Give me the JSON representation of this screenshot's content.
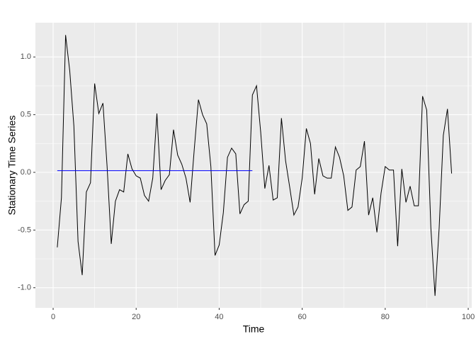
{
  "chart_data": {
    "type": "line",
    "xlabel": "Time",
    "ylabel": "Stationary Time Series",
    "xlim": [
      -4.27,
      100.85
    ],
    "ylim": [
      -1.174,
      1.297
    ],
    "xticks": [
      0,
      20,
      40,
      60,
      80,
      100
    ],
    "yticks": [
      {
        "value": -1,
        "label": "-1.0"
      },
      {
        "value": -0.5,
        "label": "-0.5"
      },
      {
        "value": 0,
        "label": "0.0"
      },
      {
        "value": 0.5,
        "label": "0.5"
      },
      {
        "value": 1,
        "label": "1.0"
      }
    ],
    "grid": true,
    "series": [
      {
        "color": "#000000",
        "x": [
          1,
          2,
          3,
          4,
          5,
          6,
          7,
          8,
          9,
          10,
          11,
          12,
          13,
          14,
          15,
          16,
          17,
          18,
          19,
          20,
          21,
          22,
          23,
          24,
          25,
          26,
          27,
          28,
          29,
          30,
          31,
          32,
          33,
          34,
          35,
          36,
          37,
          38,
          39,
          40,
          41,
          42,
          43,
          44,
          45,
          46,
          47,
          48,
          49,
          50,
          51,
          52,
          53,
          54,
          55,
          56,
          57,
          58,
          59,
          60,
          61,
          62,
          63,
          64,
          65,
          66,
          67,
          68,
          69,
          70,
          71,
          72,
          73,
          74,
          75,
          76,
          77,
          78,
          79,
          80,
          81,
          82,
          83,
          84,
          85,
          86,
          87,
          88,
          89,
          90,
          91,
          92,
          93,
          94,
          95,
          96
        ],
        "values": [
          -0.65,
          -0.22,
          1.19,
          0.88,
          0.4,
          -0.6,
          -0.89,
          -0.17,
          -0.09,
          0.77,
          0.51,
          0.6,
          0.05,
          -0.62,
          -0.25,
          -0.15,
          -0.17,
          0.16,
          0.03,
          -0.03,
          -0.05,
          -0.2,
          -0.25,
          -0.05,
          0.51,
          -0.15,
          -0.07,
          -0.02,
          0.37,
          0.15,
          0.07,
          -0.05,
          -0.26,
          0.2,
          0.63,
          0.5,
          0.42,
          0.05,
          -0.72,
          -0.63,
          -0.35,
          0.13,
          0.21,
          0.16,
          -0.36,
          -0.28,
          -0.25,
          0.67,
          0.75,
          0.35,
          -0.14,
          0.06,
          -0.24,
          -0.22,
          0.47,
          0.1,
          -0.13,
          -0.37,
          -0.3,
          -0.05,
          0.38,
          0.25,
          -0.19,
          0.12,
          -0.03,
          -0.05,
          -0.05,
          0.22,
          0.13,
          -0.03,
          -0.33,
          -0.3,
          0.02,
          0.05,
          0.27,
          -0.37,
          -0.22,
          -0.52,
          -0.18,
          0.05,
          0.02,
          0.02,
          -0.64,
          0.03,
          -0.26,
          -0.12,
          -0.29,
          -0.29,
          0.66,
          0.54,
          -0.48,
          -1.07,
          -0.48,
          0.32,
          0.55,
          -0.01
        ]
      },
      {
        "color": "#0000ff",
        "x": [
          1,
          48
        ],
        "values": [
          0.015,
          0.015
        ]
      }
    ]
  }
}
